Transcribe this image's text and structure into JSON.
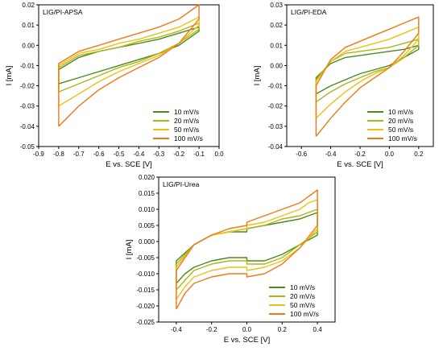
{
  "chart_data": [
    {
      "type": "line",
      "title": "LIG/PI-APSA",
      "xlabel": "E vs. SCE [V]",
      "ylabel": "I [mA]",
      "xlim": [
        -0.9,
        0.0
      ],
      "ylim": [
        -0.05,
        0.02
      ],
      "xticks": [
        "-0.9",
        "-0.8",
        "-0.7",
        "-0.6",
        "-0.5",
        "-0.4",
        "-0.3",
        "-0.2",
        "-0.1",
        "0.0"
      ],
      "yticks": [
        "-0.05",
        "-0.04",
        "-0.03",
        "-0.02",
        "-0.01",
        "0.00",
        "0.01",
        "0.02"
      ],
      "legend_position": "bottom-right",
      "series": [
        {
          "name": "10 mV/s",
          "color": "#4a8a1c",
          "x": [
            -0.8,
            -0.7,
            -0.6,
            -0.5,
            -0.4,
            -0.3,
            -0.2,
            -0.1,
            -0.1,
            -0.2,
            -0.3,
            -0.4,
            -0.5,
            -0.6,
            -0.7,
            -0.8,
            -0.8
          ],
          "y": [
            -0.019,
            -0.016,
            -0.013,
            -0.01,
            -0.007,
            -0.004,
            0.0,
            0.007,
            0.009,
            0.006,
            0.003,
            0.001,
            -0.001,
            -0.003,
            -0.006,
            -0.012,
            -0.019
          ]
        },
        {
          "name": "20 mV/s",
          "color": "#a8b818",
          "x": [
            -0.8,
            -0.7,
            -0.6,
            -0.5,
            -0.4,
            -0.3,
            -0.2,
            -0.1,
            -0.1,
            -0.2,
            -0.3,
            -0.4,
            -0.5,
            -0.6,
            -0.7,
            -0.8,
            -0.8
          ],
          "y": [
            -0.023,
            -0.019,
            -0.015,
            -0.011,
            -0.008,
            -0.004,
            0.001,
            0.008,
            0.011,
            0.007,
            0.004,
            0.002,
            -0.001,
            -0.003,
            -0.005,
            -0.011,
            -0.023
          ]
        },
        {
          "name": "50 mV/s",
          "color": "#f0c010",
          "x": [
            -0.8,
            -0.7,
            -0.6,
            -0.5,
            -0.4,
            -0.3,
            -0.2,
            -0.1,
            -0.1,
            -0.2,
            -0.3,
            -0.4,
            -0.5,
            -0.6,
            -0.7,
            -0.8,
            -0.8
          ],
          "y": [
            -0.03,
            -0.024,
            -0.018,
            -0.013,
            -0.009,
            -0.005,
            0.001,
            0.01,
            0.014,
            0.009,
            0.006,
            0.003,
            0.001,
            -0.002,
            -0.004,
            -0.01,
            -0.03
          ]
        },
        {
          "name": "100 mV/s",
          "color": "#f07818",
          "x": [
            -0.8,
            -0.7,
            -0.6,
            -0.5,
            -0.4,
            -0.3,
            -0.2,
            -0.1,
            -0.1,
            -0.2,
            -0.3,
            -0.4,
            -0.5,
            -0.6,
            -0.7,
            -0.8,
            -0.8
          ],
          "y": [
            -0.04,
            -0.03,
            -0.022,
            -0.016,
            -0.011,
            -0.006,
            0.001,
            0.013,
            0.02,
            0.013,
            0.009,
            0.006,
            0.003,
            0.0,
            -0.003,
            -0.009,
            -0.04
          ]
        }
      ]
    },
    {
      "type": "line",
      "title": "LIG/PI-EDA",
      "xlabel": "E vs. SCE [V]",
      "ylabel": "I [mA]",
      "xlim": [
        -0.7,
        0.3
      ],
      "ylim": [
        -0.04,
        0.03
      ],
      "xticks": [
        "-0.6",
        "-0.4",
        "-0.2",
        "0.0",
        "0.2"
      ],
      "yticks": [
        "-0.04",
        "-0.03",
        "-0.02",
        "-0.01",
        "0.00",
        "0.01",
        "0.02",
        "0.03"
      ],
      "legend_position": "bottom-right",
      "series": [
        {
          "name": "10 mV/s",
          "color": "#4a8a1c",
          "x": [
            -0.5,
            -0.4,
            -0.3,
            -0.2,
            -0.1,
            0.0,
            0.1,
            0.2,
            0.2,
            0.1,
            0.0,
            -0.1,
            -0.2,
            -0.3,
            -0.4,
            -0.5,
            -0.5
          ],
          "y": [
            -0.014,
            -0.01,
            -0.007,
            -0.004,
            -0.002,
            0.0,
            0.004,
            0.008,
            0.01,
            0.008,
            0.007,
            0.006,
            0.005,
            0.004,
            0.001,
            -0.006,
            -0.014
          ]
        },
        {
          "name": "20 mV/s",
          "color": "#a8b818",
          "x": [
            -0.5,
            -0.4,
            -0.3,
            -0.2,
            -0.1,
            0.0,
            0.1,
            0.2,
            0.2,
            0.1,
            0.0,
            -0.1,
            -0.2,
            -0.3,
            -0.4,
            -0.5,
            -0.5
          ],
          "y": [
            -0.018,
            -0.013,
            -0.009,
            -0.006,
            -0.003,
            -0.001,
            0.004,
            0.01,
            0.013,
            0.011,
            0.009,
            0.008,
            0.007,
            0.006,
            0.002,
            -0.007,
            -0.018
          ]
        },
        {
          "name": "50 mV/s",
          "color": "#f0c010",
          "x": [
            -0.5,
            -0.4,
            -0.3,
            -0.2,
            -0.1,
            0.0,
            0.1,
            0.2,
            0.2,
            0.1,
            0.0,
            -0.1,
            -0.2,
            -0.3,
            -0.4,
            -0.5,
            -0.5
          ],
          "y": [
            -0.026,
            -0.019,
            -0.013,
            -0.008,
            -0.004,
            -0.001,
            0.005,
            0.013,
            0.019,
            0.016,
            0.013,
            0.011,
            0.009,
            0.007,
            0.002,
            -0.008,
            -0.026
          ]
        },
        {
          "name": "100 mV/s",
          "color": "#f07818",
          "x": [
            -0.5,
            -0.4,
            -0.3,
            -0.2,
            -0.1,
            0.0,
            0.1,
            0.2,
            0.2,
            0.1,
            0.0,
            -0.1,
            -0.2,
            -0.3,
            -0.4,
            -0.5,
            -0.5
          ],
          "y": [
            -0.035,
            -0.026,
            -0.018,
            -0.011,
            -0.006,
            -0.001,
            0.007,
            0.016,
            0.024,
            0.021,
            0.018,
            0.015,
            0.012,
            0.009,
            0.003,
            -0.01,
            -0.035
          ]
        }
      ]
    },
    {
      "type": "line",
      "title": "LIG/PI-Urea",
      "xlabel": "E vs. SCE [V]",
      "ylabel": "I [mA]",
      "xlim": [
        -0.5,
        0.5
      ],
      "ylim": [
        -0.025,
        0.02
      ],
      "xticks": [
        "-0.4",
        "-0.2",
        "0.0",
        "0.2",
        "0.4"
      ],
      "yticks": [
        "-0.025",
        "-0.020",
        "-0.015",
        "-0.010",
        "-0.005",
        "0.000",
        "0.005",
        "0.010",
        "0.015",
        "0.020"
      ],
      "legend_position": "bottom-right",
      "series": [
        {
          "name": "10 mV/s",
          "color": "#4a8a1c",
          "x": [
            -0.4,
            -0.35,
            -0.3,
            -0.2,
            -0.1,
            0.0,
            0.0,
            0.1,
            0.2,
            0.3,
            0.4,
            0.4,
            0.35,
            0.3,
            0.2,
            0.1,
            0.0,
            0.0,
            -0.1,
            -0.2,
            -0.3,
            -0.4,
            -0.4
          ],
          "y": [
            -0.013,
            -0.01,
            -0.008,
            -0.006,
            -0.005,
            -0.005,
            -0.006,
            -0.006,
            -0.004,
            -0.001,
            0.002,
            0.009,
            0.008,
            0.007,
            0.006,
            0.005,
            0.004,
            0.003,
            0.003,
            0.002,
            -0.001,
            -0.006,
            -0.013
          ]
        },
        {
          "name": "20 mV/s",
          "color": "#a8b818",
          "x": [
            -0.4,
            -0.35,
            -0.3,
            -0.2,
            -0.1,
            0.0,
            0.0,
            0.1,
            0.2,
            0.3,
            0.4,
            0.4,
            0.35,
            0.3,
            0.2,
            0.1,
            0.0,
            0.0,
            -0.1,
            -0.2,
            -0.3,
            -0.4,
            -0.4
          ],
          "y": [
            -0.015,
            -0.012,
            -0.009,
            -0.007,
            -0.006,
            -0.006,
            -0.007,
            -0.007,
            -0.005,
            -0.001,
            0.003,
            0.01,
            0.009,
            0.008,
            0.007,
            0.005,
            0.004,
            0.004,
            0.003,
            0.002,
            -0.001,
            -0.007,
            -0.015
          ]
        },
        {
          "name": "50 mV/s",
          "color": "#f0c010",
          "x": [
            -0.4,
            -0.35,
            -0.3,
            -0.2,
            -0.1,
            0.0,
            0.0,
            0.1,
            0.2,
            0.3,
            0.4,
            0.4,
            0.35,
            0.3,
            0.2,
            0.1,
            0.0,
            0.0,
            -0.1,
            -0.2,
            -0.3,
            -0.4,
            -0.4
          ],
          "y": [
            -0.018,
            -0.014,
            -0.011,
            -0.009,
            -0.008,
            -0.008,
            -0.009,
            -0.008,
            -0.006,
            -0.002,
            0.004,
            0.013,
            0.012,
            0.01,
            0.008,
            0.006,
            0.005,
            0.004,
            0.003,
            0.002,
            -0.001,
            -0.008,
            -0.018
          ]
        },
        {
          "name": "100 mV/s",
          "color": "#f07818",
          "x": [
            -0.4,
            -0.35,
            -0.3,
            -0.2,
            -0.1,
            0.0,
            0.0,
            0.1,
            0.2,
            0.3,
            0.4,
            0.4,
            0.35,
            0.3,
            0.2,
            0.1,
            0.0,
            0.0,
            -0.1,
            -0.2,
            -0.3,
            -0.4,
            -0.4
          ],
          "y": [
            -0.021,
            -0.016,
            -0.013,
            -0.011,
            -0.01,
            -0.01,
            -0.011,
            -0.01,
            -0.007,
            -0.002,
            0.005,
            0.016,
            0.014,
            0.012,
            0.01,
            0.008,
            0.006,
            0.005,
            0.004,
            0.002,
            -0.001,
            -0.009,
            -0.021
          ]
        }
      ]
    }
  ]
}
